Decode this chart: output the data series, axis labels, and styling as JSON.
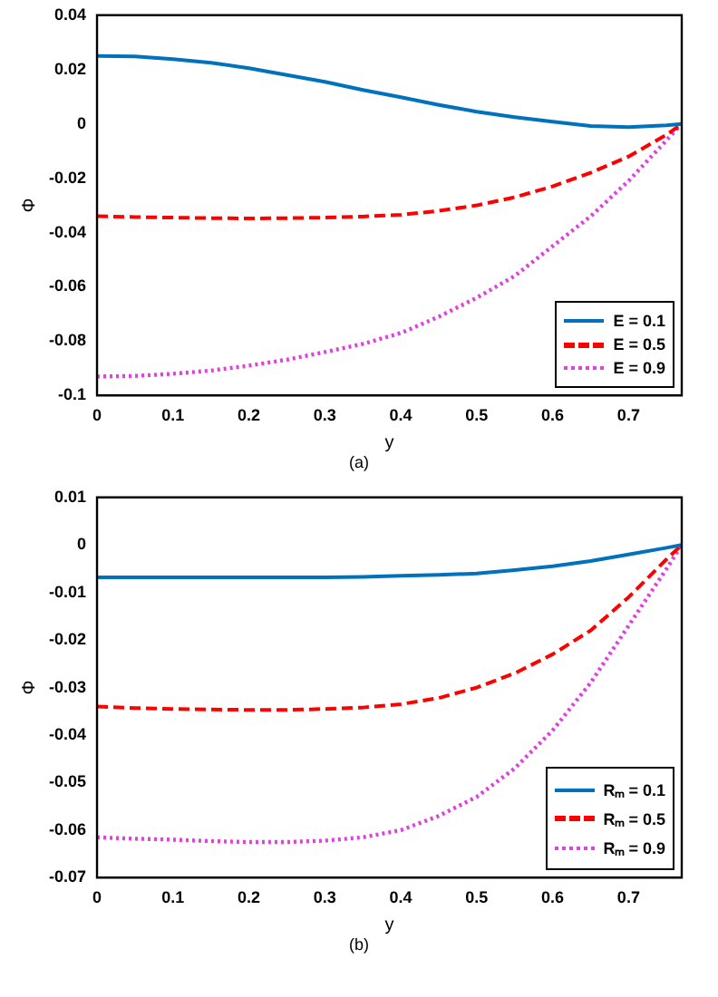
{
  "chart_data": [
    {
      "type": "line",
      "xlabel": "y",
      "ylabel": "Φ",
      "annotations": [
        "(a)"
      ],
      "legend": "bottom right",
      "grid": false,
      "xlim": [
        0,
        0.77
      ],
      "xticks": [
        0,
        0.1,
        0.2,
        0.3,
        0.4,
        0.5,
        0.6,
        0.7
      ],
      "ylim": [
        -0.1,
        0.04
      ],
      "yticks": [
        -0.1,
        -0.08,
        -0.06,
        -0.04,
        -0.02,
        0,
        0.02,
        0.04
      ],
      "x": [
        0,
        0.05,
        0.1,
        0.15,
        0.2,
        0.25,
        0.3,
        0.35,
        0.4,
        0.45,
        0.5,
        0.55,
        0.6,
        0.65,
        0.7,
        0.75,
        0.77
      ],
      "series": [
        {
          "name": "E = 0.1",
          "color": "#0072bd",
          "line_style": "solid",
          "values": [
            0.025,
            0.0248,
            0.0238,
            0.0225,
            0.0205,
            0.018,
            0.0155,
            0.0125,
            0.0098,
            0.007,
            0.0045,
            0.0025,
            0.0008,
            -0.0008,
            -0.0012,
            -0.0005,
            0
          ]
        },
        {
          "name": "E = 0.5",
          "color": "#ff0000",
          "line_style": "dashed",
          "values": [
            -0.034,
            -0.0343,
            -0.0345,
            -0.0347,
            -0.0348,
            -0.0347,
            -0.0345,
            -0.0341,
            -0.0335,
            -0.032,
            -0.03,
            -0.027,
            -0.023,
            -0.018,
            -0.012,
            -0.004,
            0
          ]
        },
        {
          "name": "E = 0.9",
          "color": "#e040e0",
          "line_style": "dotted",
          "values": [
            -0.093,
            -0.0928,
            -0.092,
            -0.0908,
            -0.089,
            -0.0868,
            -0.084,
            -0.081,
            -0.077,
            -0.071,
            -0.064,
            -0.056,
            -0.045,
            -0.034,
            -0.021,
            -0.006,
            0
          ]
        }
      ]
    },
    {
      "type": "line",
      "xlabel": "y",
      "ylabel": "Φ",
      "annotations": [
        "(b)"
      ],
      "legend": "bottom right",
      "grid": false,
      "xlim": [
        0,
        0.77
      ],
      "xticks": [
        0,
        0.1,
        0.2,
        0.3,
        0.4,
        0.5,
        0.6,
        0.7
      ],
      "ylim": [
        -0.07,
        0.01
      ],
      "yticks": [
        -0.07,
        -0.06,
        -0.05,
        -0.04,
        -0.03,
        -0.02,
        -0.01,
        0,
        0.01
      ],
      "x": [
        0,
        0.05,
        0.1,
        0.15,
        0.2,
        0.25,
        0.3,
        0.35,
        0.4,
        0.45,
        0.5,
        0.55,
        0.6,
        0.65,
        0.7,
        0.75,
        0.77
      ],
      "series": [
        {
          "name": "Rₘ = 0.1",
          "color": "#0072bd",
          "line_style": "solid",
          "values": [
            -0.0068,
            -0.0068,
            -0.0068,
            -0.0068,
            -0.0068,
            -0.0068,
            -0.0068,
            -0.0067,
            -0.0065,
            -0.0063,
            -0.006,
            -0.0053,
            -0.0045,
            -0.0034,
            -0.002,
            -0.0006,
            0
          ]
        },
        {
          "name": "Rₘ = 0.5",
          "color": "#ff0000",
          "line_style": "dashed",
          "values": [
            -0.034,
            -0.0343,
            -0.0345,
            -0.0346,
            -0.0347,
            -0.0347,
            -0.0345,
            -0.0342,
            -0.0335,
            -0.0322,
            -0.03,
            -0.027,
            -0.023,
            -0.018,
            -0.011,
            -0.003,
            0
          ]
        },
        {
          "name": "Rₘ = 0.9",
          "color": "#e040e0",
          "line_style": "dotted",
          "values": [
            -0.0615,
            -0.0618,
            -0.062,
            -0.0623,
            -0.0625,
            -0.0625,
            -0.0622,
            -0.0615,
            -0.06,
            -0.057,
            -0.053,
            -0.047,
            -0.039,
            -0.029,
            -0.017,
            -0.005,
            0
          ]
        }
      ]
    }
  ]
}
